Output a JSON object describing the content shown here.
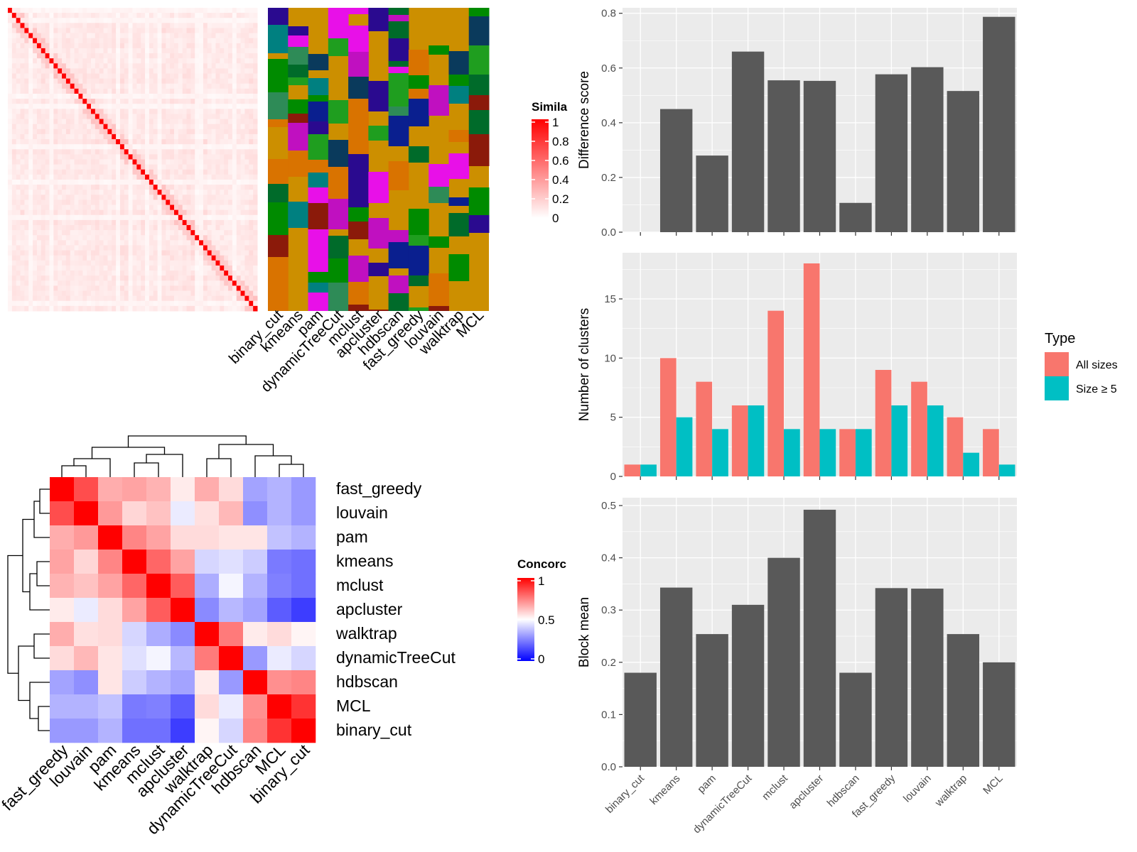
{
  "methods_similarity": [
    "binary_cut",
    "kmeans",
    "pam",
    "dynamicTreeCut",
    "mclust",
    "apcluster",
    "hdbscan",
    "fast_greedy",
    "louvain",
    "walktrap",
    "MCL"
  ],
  "similarity_legend": {
    "title": "Simila",
    "ticks": [
      "1",
      "0.8",
      "0.6",
      "0.4",
      "0.2",
      "0"
    ]
  },
  "concordance_legend": {
    "title": "Concorc",
    "ticks": [
      "1",
      "0.5",
      "0"
    ]
  },
  "colors": {
    "low": "#0000FF",
    "mid": "#FFFFFF",
    "high": "#FF0000",
    "bar": "#595959",
    "panel": "#EBEBEB",
    "all_sizes": "#F8766D",
    "size_ge5": "#00BFC4"
  },
  "concordance": {
    "order": [
      "fast_greedy",
      "louvain",
      "pam",
      "kmeans",
      "mclust",
      "apcluster",
      "walktrap",
      "dynamicTreeCut",
      "hdbscan",
      "MCL",
      "binary_cut"
    ],
    "matrix": [
      [
        1.0,
        0.85,
        0.66,
        0.68,
        0.65,
        0.54,
        0.66,
        0.57,
        0.32,
        0.35,
        0.3
      ],
      [
        0.85,
        1.0,
        0.7,
        0.58,
        0.62,
        0.46,
        0.56,
        0.64,
        0.28,
        0.35,
        0.3
      ],
      [
        0.66,
        0.7,
        1.0,
        0.74,
        0.68,
        0.57,
        0.57,
        0.55,
        0.55,
        0.38,
        0.35
      ],
      [
        0.68,
        0.58,
        0.74,
        1.0,
        0.8,
        0.68,
        0.42,
        0.44,
        0.4,
        0.24,
        0.22
      ],
      [
        0.65,
        0.62,
        0.68,
        0.8,
        1.0,
        0.82,
        0.34,
        0.48,
        0.35,
        0.25,
        0.22
      ],
      [
        0.54,
        0.46,
        0.57,
        0.68,
        0.82,
        1.0,
        0.27,
        0.36,
        0.32,
        0.18,
        0.12
      ],
      [
        0.66,
        0.56,
        0.57,
        0.42,
        0.34,
        0.27,
        1.0,
        0.76,
        0.54,
        0.57,
        0.52
      ],
      [
        0.57,
        0.64,
        0.55,
        0.44,
        0.48,
        0.36,
        0.76,
        1.0,
        0.3,
        0.46,
        0.42
      ],
      [
        0.32,
        0.28,
        0.55,
        0.4,
        0.35,
        0.32,
        0.54,
        0.3,
        1.0,
        0.72,
        0.74
      ],
      [
        0.35,
        0.35,
        0.38,
        0.24,
        0.25,
        0.18,
        0.57,
        0.46,
        0.72,
        1.0,
        0.9
      ],
      [
        0.3,
        0.3,
        0.35,
        0.22,
        0.22,
        0.12,
        0.52,
        0.42,
        0.74,
        0.9,
        1.0
      ]
    ]
  },
  "chart_data": [
    {
      "type": "bar",
      "categories": [
        "binary_cut",
        "kmeans",
        "pam",
        "dynamicTreeCut",
        "mclust",
        "apcluster",
        "hdbscan",
        "fast_greedy",
        "louvain",
        "walktrap",
        "MCL"
      ],
      "values": [
        0,
        0.45,
        0.28,
        0.66,
        0.555,
        0.553,
        0.107,
        0.577,
        0.603,
        0.516,
        0.787
      ],
      "ylabel": "Difference score",
      "ylim": [
        0,
        0.82
      ],
      "yticks": [
        0,
        0.2,
        0.4,
        0.6,
        0.8
      ],
      "ytick_labels": [
        "0.0",
        "0.2",
        "0.4",
        "0.6",
        "0.8"
      ]
    },
    {
      "type": "bar",
      "categories": [
        "binary_cut",
        "kmeans",
        "pam",
        "dynamicTreeCut",
        "mclust",
        "apcluster",
        "hdbscan",
        "fast_greedy",
        "louvain",
        "walktrap",
        "MCL"
      ],
      "series": [
        {
          "name": "All sizes",
          "values": [
            1,
            10,
            8,
            6,
            14,
            18,
            4,
            9,
            8,
            5,
            4
          ]
        },
        {
          "name": "Size ≥ 5",
          "values": [
            1,
            5,
            4,
            6,
            4,
            4,
            4,
            6,
            6,
            2,
            1
          ]
        }
      ],
      "ylabel": "Number of clusters",
      "ylim": [
        0,
        18.9
      ],
      "yticks": [
        0,
        5,
        10,
        15
      ],
      "ytick_labels": [
        "0",
        "5",
        "10",
        "15"
      ],
      "legend": {
        "title": "Type",
        "position": "right"
      }
    },
    {
      "type": "bar",
      "categories": [
        "binary_cut",
        "kmeans",
        "pam",
        "dynamicTreeCut",
        "mclust",
        "apcluster",
        "hdbscan",
        "fast_greedy",
        "louvain",
        "walktrap",
        "MCL"
      ],
      "values": [
        0.18,
        0.343,
        0.254,
        0.31,
        0.4,
        0.492,
        0.18,
        0.342,
        0.341,
        0.254,
        0.2
      ],
      "ylabel": "Block mean",
      "ylim": [
        0,
        0.515
      ],
      "yticks": [
        0,
        0.1,
        0.2,
        0.3,
        0.4,
        0.5
      ],
      "ytick_labels": [
        "0.0",
        "0.1",
        "0.2",
        "0.3",
        "0.4",
        "0.5"
      ]
    }
  ]
}
